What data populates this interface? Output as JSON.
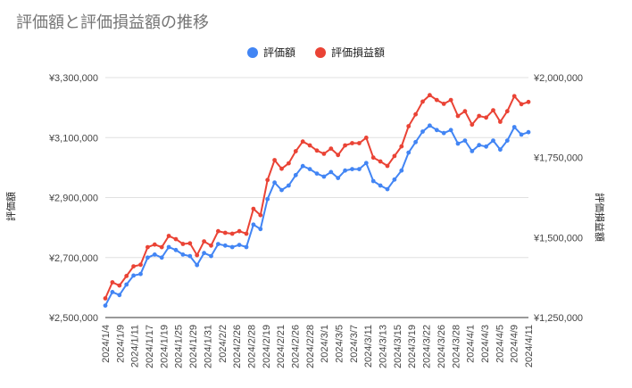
{
  "title": "評価額と評価損益額の推移",
  "colors": {
    "left_series": "#4285f4",
    "right_series": "#ea4335",
    "grid": "#e0e0e0",
    "axis_text": "#444444"
  },
  "chart_data": {
    "type": "line",
    "title": "評価額と評価損益額の推移",
    "legend_position": "top",
    "grid": true,
    "y_left": {
      "label": "評価額",
      "ylim": [
        2500000,
        3300000
      ],
      "ticks": [
        2500000,
        2700000,
        2900000,
        3100000,
        3300000
      ],
      "tick_labels": [
        "¥2,500,000",
        "¥2,700,000",
        "¥2,900,000",
        "¥3,100,000",
        "¥3,300,000"
      ]
    },
    "y_right": {
      "label": "評価損益額",
      "ylim": [
        1250000,
        2000000
      ],
      "ticks": [
        1250000,
        1500000,
        1750000,
        2000000
      ],
      "tick_labels": [
        "¥1,250,000",
        "¥1,500,000",
        "¥1,750,000",
        "¥2,000,000"
      ]
    },
    "x_tick_labels": [
      "2024/1/4",
      "2024/1/9",
      "2024/1/11",
      "2024/1/17",
      "2024/1/19",
      "2024/1/25",
      "2024/1/29",
      "2024/1/31",
      "2024/2/2",
      "2024/2/26",
      "2024/2/28",
      "2024/2/19",
      "2024/2/21",
      "2024/2/26",
      "2024/2/28",
      "2024/3/1",
      "2024/3/5",
      "2024/3/7",
      "2024/3/11",
      "2024/3/13",
      "2024/3/15",
      "2024/3/19",
      "2024/3/22",
      "2024/3/26",
      "2024/3/28",
      "2024/4/1",
      "2024/4/3",
      "2024/4/5",
      "2024/4/9",
      "2024/4/11"
    ],
    "series": [
      {
        "name": "評価額",
        "axis": "left",
        "values": [
          2540000,
          2585000,
          2575000,
          2610000,
          2640000,
          2645000,
          2700000,
          2710000,
          2700000,
          2735000,
          2725000,
          2710000,
          2705000,
          2675000,
          2715000,
          2705000,
          2745000,
          2740000,
          2735000,
          2742000,
          2735000,
          2810000,
          2795000,
          2895000,
          2950000,
          2925000,
          2940000,
          2975000,
          3005000,
          2995000,
          2980000,
          2970000,
          2985000,
          2965000,
          2990000,
          2995000,
          2995000,
          3015000,
          2955000,
          2940000,
          2928000,
          2960000,
          2990000,
          3050000,
          3085000,
          3120000,
          3140000,
          3125000,
          3115000,
          3125000,
          3080000,
          3090000,
          3055000,
          3075000,
          3070000,
          3090000,
          3060000,
          3090000,
          3135000,
          3110000,
          3118000
        ],
        "color": "#4285f4"
      },
      {
        "name": "評価損益額",
        "axis": "right",
        "values": [
          1310000,
          1360000,
          1350000,
          1380000,
          1410000,
          1415000,
          1470000,
          1478000,
          1470000,
          1505000,
          1495000,
          1480000,
          1482000,
          1445000,
          1488000,
          1475000,
          1520000,
          1515000,
          1512000,
          1520000,
          1512000,
          1590000,
          1570000,
          1680000,
          1742000,
          1715000,
          1732000,
          1770000,
          1800000,
          1788000,
          1772000,
          1762000,
          1778000,
          1758000,
          1788000,
          1795000,
          1795000,
          1812000,
          1750000,
          1738000,
          1724000,
          1755000,
          1785000,
          1848000,
          1885000,
          1925000,
          1945000,
          1930000,
          1918000,
          1930000,
          1880000,
          1895000,
          1853000,
          1880000,
          1875000,
          1898000,
          1862000,
          1895000,
          1942000,
          1917000,
          1924000
        ],
        "color": "#ea4335"
      }
    ]
  }
}
